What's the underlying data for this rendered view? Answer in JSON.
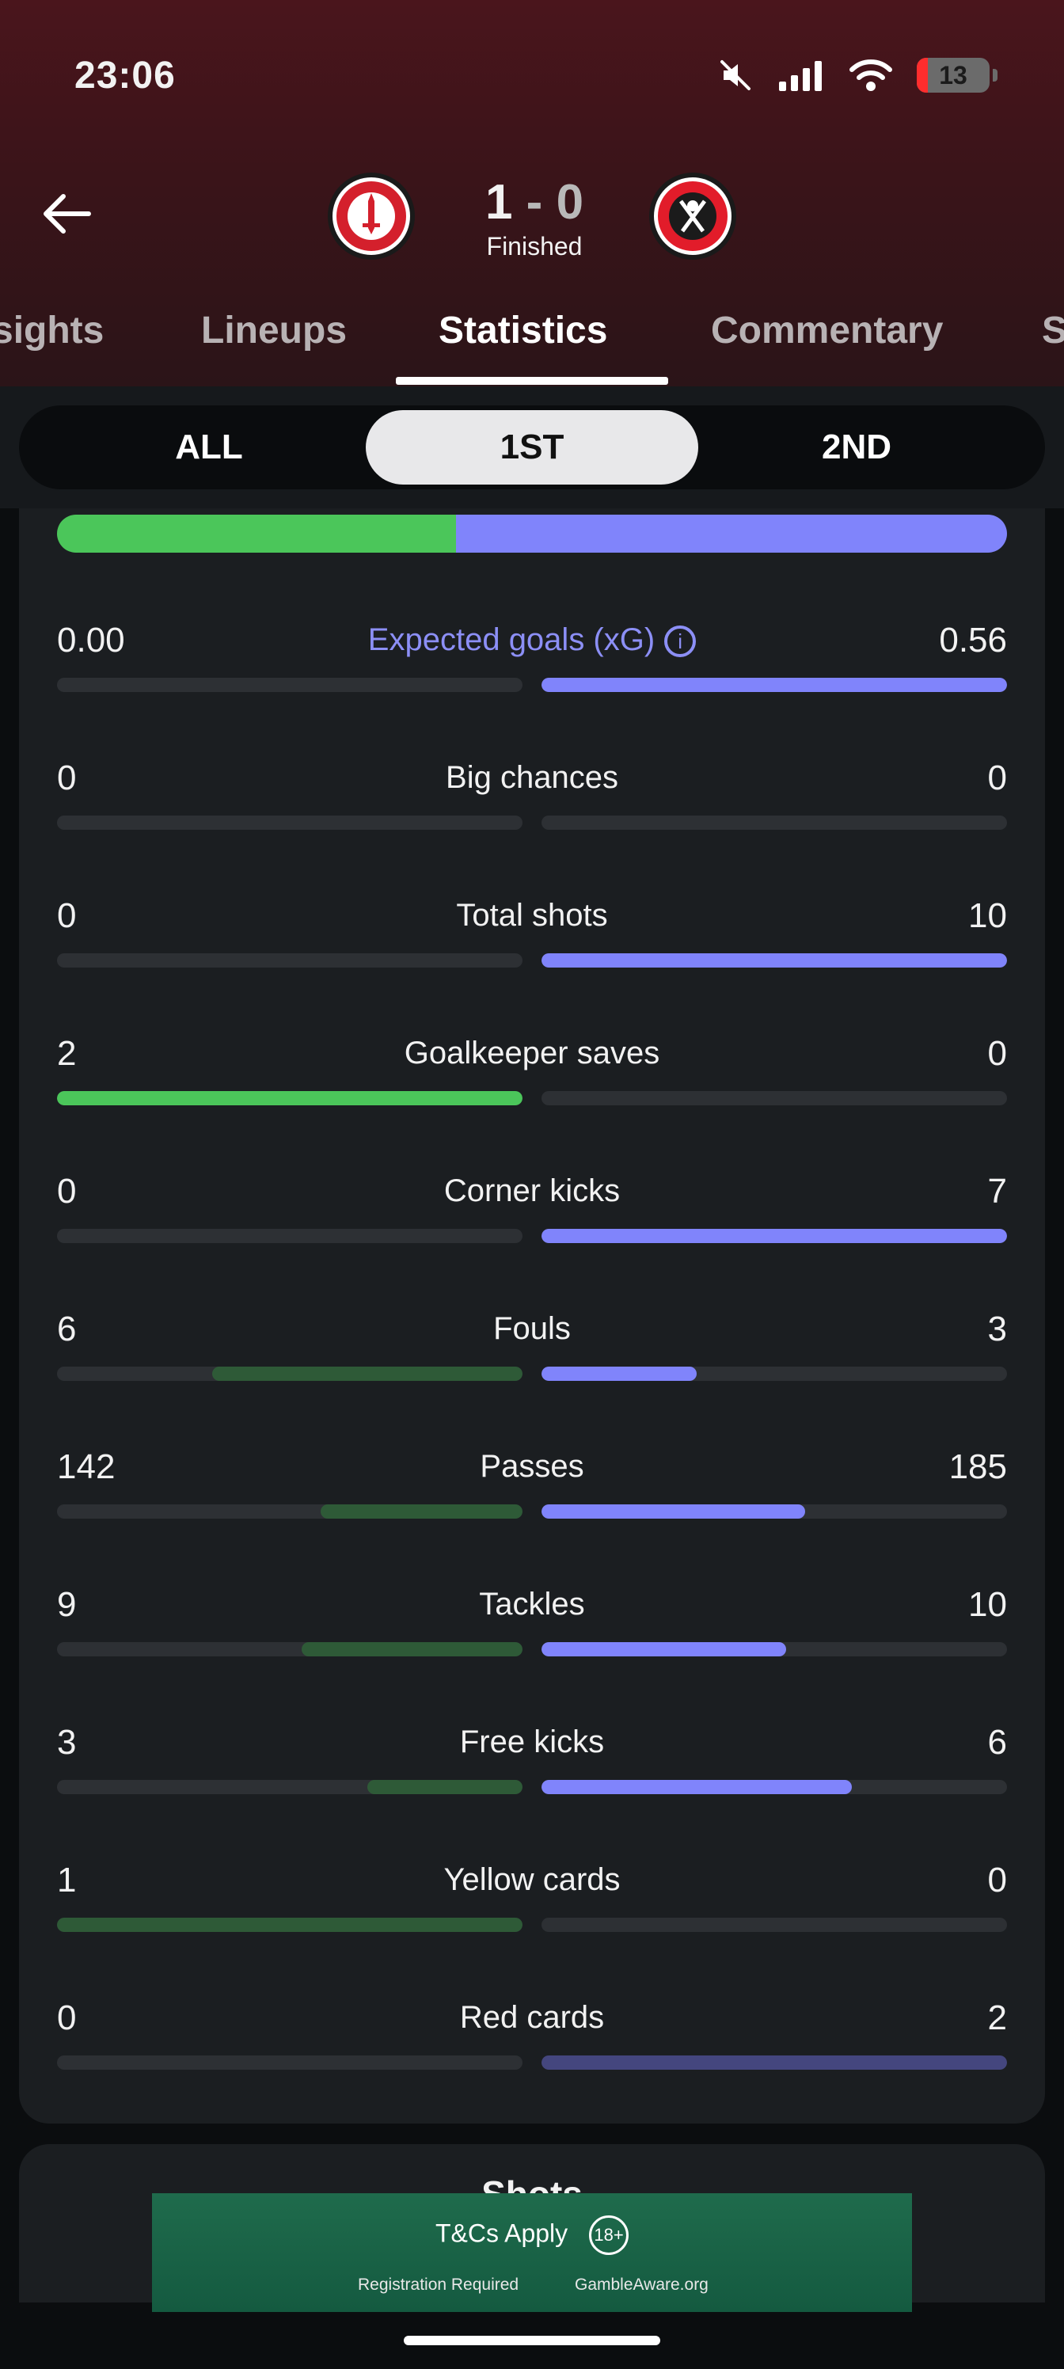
{
  "status_bar": {
    "time": "23:06",
    "battery": "13",
    "icons": [
      "mute-icon",
      "signal-icon",
      "wifi-icon",
      "battery-icon"
    ]
  },
  "match": {
    "home_team": "Charlton Athletic",
    "away_team": "Sheffield United",
    "home_score": "1",
    "separator": "-",
    "away_score": "0",
    "status": "Finished"
  },
  "tabs": [
    {
      "label": "sights"
    },
    {
      "label": "Lineups"
    },
    {
      "label": "Statistics"
    },
    {
      "label": "Commentary"
    },
    {
      "label": "S"
    }
  ],
  "periods": [
    {
      "label": "ALL"
    },
    {
      "label": "1ST"
    },
    {
      "label": "2ND"
    }
  ],
  "colors": {
    "home": "#4bc65a",
    "home_dim": "#2e5a37",
    "away": "#8084fb",
    "away_dim": "#44467e",
    "track": "#2d3034"
  },
  "possession": {
    "home_fraction": 0.42,
    "away_fraction": 0.58
  },
  "stats": [
    {
      "label": "Expected goals (xG)",
      "home": "0.00",
      "away": "0.56",
      "home_fill": 0,
      "away_fill": 1,
      "home_style": "dim",
      "away_style": "bright",
      "info": true
    },
    {
      "label": "Big chances",
      "home": "0",
      "away": "0",
      "home_fill": 0,
      "away_fill": 0,
      "home_style": "dim",
      "away_style": "dim"
    },
    {
      "label": "Total shots",
      "home": "0",
      "away": "10",
      "home_fill": 0,
      "away_fill": 1,
      "home_style": "dim",
      "away_style": "bright"
    },
    {
      "label": "Goalkeeper saves",
      "home": "2",
      "away": "0",
      "home_fill": 1,
      "away_fill": 0,
      "home_style": "bright",
      "away_style": "dim"
    },
    {
      "label": "Corner kicks",
      "home": "0",
      "away": "7",
      "home_fill": 0,
      "away_fill": 1,
      "home_style": "dim",
      "away_style": "bright"
    },
    {
      "label": "Fouls",
      "home": "6",
      "away": "3",
      "home_fill": 0.667,
      "away_fill": 0.333,
      "home_style": "dim",
      "away_style": "bright"
    },
    {
      "label": "Passes",
      "home": "142",
      "away": "185",
      "home_fill": 0.434,
      "away_fill": 0.566,
      "home_style": "dim",
      "away_style": "bright"
    },
    {
      "label": "Tackles",
      "home": "9",
      "away": "10",
      "home_fill": 0.474,
      "away_fill": 0.526,
      "home_style": "dim",
      "away_style": "bright"
    },
    {
      "label": "Free kicks",
      "home": "3",
      "away": "6",
      "home_fill": 0.333,
      "away_fill": 0.667,
      "home_style": "dim",
      "away_style": "bright"
    },
    {
      "label": "Yellow cards",
      "home": "1",
      "away": "0",
      "home_fill": 1,
      "away_fill": 0,
      "home_style": "dim",
      "away_style": "dim"
    },
    {
      "label": "Red cards",
      "home": "0",
      "away": "2",
      "home_fill": 0,
      "away_fill": 1,
      "home_style": "dim",
      "away_style": "dim"
    }
  ],
  "next_section": {
    "title": "Shots"
  },
  "ad": {
    "headline": "T&Cs Apply",
    "age": "18+",
    "line1": "Registration Required",
    "line2": "GambleAware.org"
  }
}
